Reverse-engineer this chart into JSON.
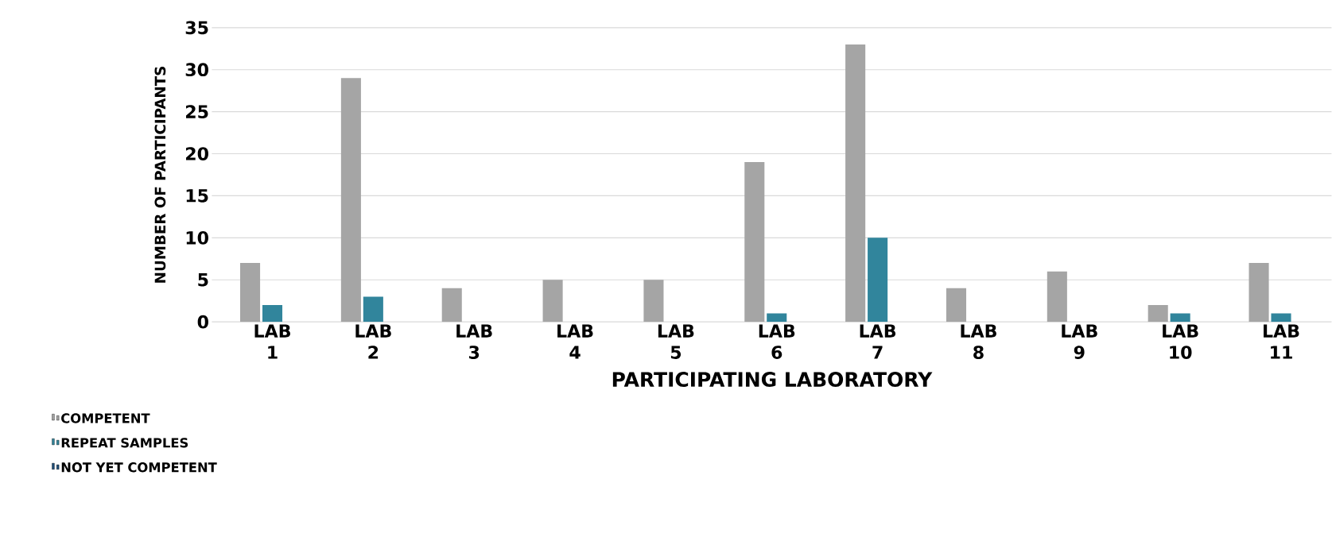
{
  "chart_data": {
    "type": "bar",
    "xlabel": "PARTICIPATING LABORATORY",
    "ylabel": "NUMBER OF PARTICIPANTS",
    "categories": [
      "LAB 1",
      "LAB 2",
      "LAB 3",
      "LAB 4",
      "LAB 5",
      "LAB 6",
      "LAB 7",
      "LAB 8",
      "LAB 9",
      "LAB 10",
      "LAB 11"
    ],
    "series": [
      {
        "name": "COMPETENT",
        "color": "#a5a5a5",
        "values": [
          7,
          29,
          4,
          5,
          5,
          19,
          33,
          4,
          6,
          2,
          7
        ]
      },
      {
        "name": "REPEAT SAMPLES",
        "color": "#31859c",
        "values": [
          2,
          3,
          0,
          0,
          0,
          1,
          10,
          0,
          0,
          1,
          1
        ]
      },
      {
        "name": "NOT YET COMPETENT",
        "color": "#1f4e79",
        "values": [
          0,
          0,
          0,
          0,
          0,
          0,
          0,
          0,
          0,
          0,
          0
        ]
      }
    ],
    "ylim": [
      0,
      35
    ],
    "yticks": [
      0,
      5,
      10,
      15,
      20,
      25,
      30,
      35
    ],
    "grid": "y",
    "legend": "bottom left"
  }
}
